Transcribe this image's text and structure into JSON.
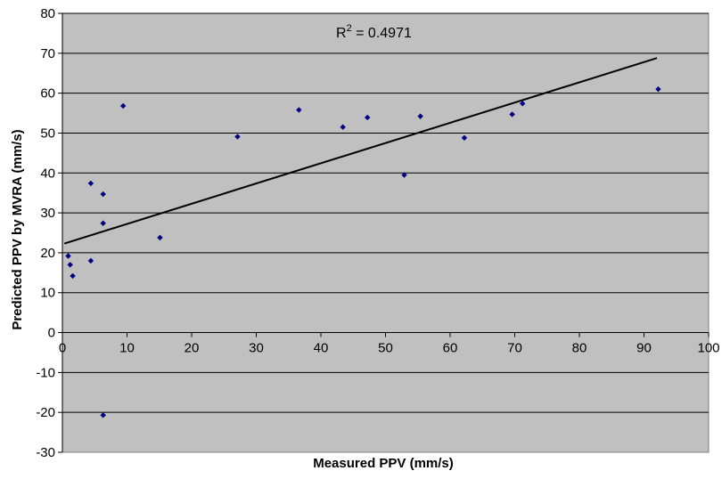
{
  "chart_data": {
    "type": "scatter",
    "xlabel": "Measured PPV (mm/s)",
    "ylabel": "Predicted PPV by MVRA (mm/s)",
    "xlim": [
      0,
      100
    ],
    "ylim": [
      -30,
      80
    ],
    "x_ticks": [
      "0",
      "10",
      "20",
      "30",
      "40",
      "50",
      "60",
      "70",
      "80",
      "90",
      "100"
    ],
    "y_ticks": [
      "80",
      "70",
      "60",
      "50",
      "40",
      "30",
      "20",
      "10",
      "0",
      "-10",
      "-20",
      "-30"
    ],
    "grid": "horizontal",
    "plot_background": "#c0c0c0",
    "marker_color": "#000080",
    "trendline_color": "#000000",
    "annotation": {
      "base": "R",
      "superscript": "2",
      "value": " = 0.4971"
    },
    "trendline": {
      "type": "linear",
      "x": [
        0.3,
        92
      ],
      "y": [
        22.3,
        68.8
      ]
    },
    "points": [
      {
        "x": 0.9,
        "y": 19.2
      },
      {
        "x": 1.2,
        "y": 17.0
      },
      {
        "x": 1.6,
        "y": 14.2
      },
      {
        "x": 4.4,
        "y": 37.4
      },
      {
        "x": 4.4,
        "y": 18.0
      },
      {
        "x": 6.3,
        "y": 34.7
      },
      {
        "x": 6.3,
        "y": 27.4
      },
      {
        "x": 6.3,
        "y": -20.7
      },
      {
        "x": 9.4,
        "y": 56.8
      },
      {
        "x": 15.1,
        "y": 23.8
      },
      {
        "x": 27.1,
        "y": 49.1
      },
      {
        "x": 36.6,
        "y": 55.8
      },
      {
        "x": 43.4,
        "y": 51.5
      },
      {
        "x": 47.2,
        "y": 53.9
      },
      {
        "x": 52.9,
        "y": 39.5
      },
      {
        "x": 55.4,
        "y": 54.2
      },
      {
        "x": 62.2,
        "y": 48.8
      },
      {
        "x": 69.6,
        "y": 54.7
      },
      {
        "x": 71.2,
        "y": 57.4
      },
      {
        "x": 92.2,
        "y": 61.0
      }
    ]
  }
}
